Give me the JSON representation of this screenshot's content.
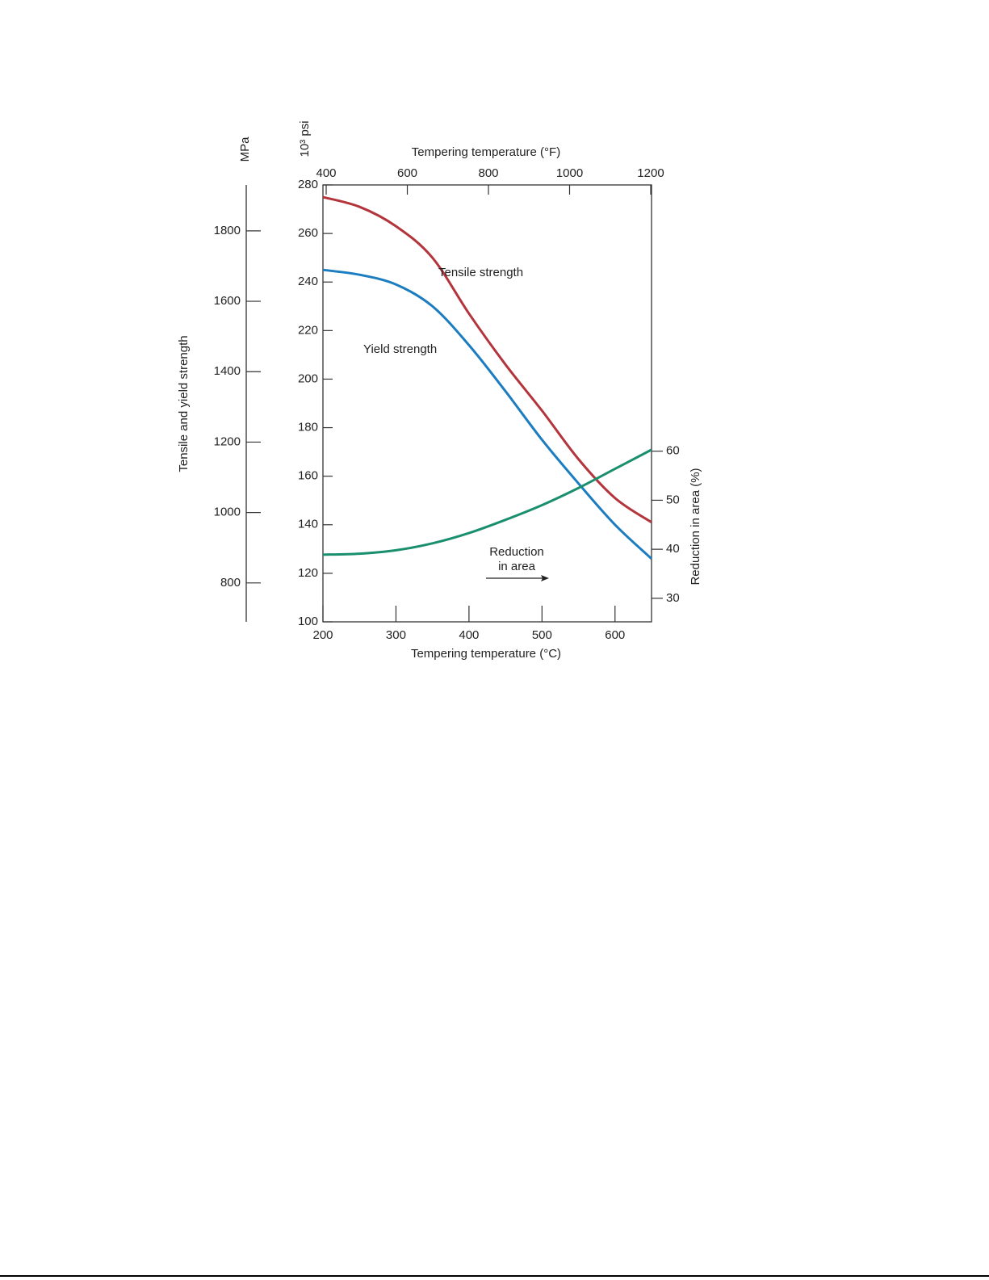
{
  "chart_data": {
    "type": "line",
    "x_label": "Tempering temperature (°C)",
    "x2_label": "Tempering temperature (°F)",
    "y_label": "Tensile and yield strength",
    "y_unit": "10³ psi",
    "y_mpa_unit": "MPa",
    "y2_label": "Reduction in area (%)",
    "x": [
      200,
      250,
      300,
      350,
      400,
      450,
      500,
      550,
      600,
      650
    ],
    "xlim": [
      200,
      650
    ],
    "xticks": [
      200,
      300,
      400,
      500,
      600
    ],
    "x2lim": [
      392,
      1202
    ],
    "x2ticks": [
      400,
      600,
      800,
      1000,
      1200
    ],
    "ylim": [
      100,
      280
    ],
    "yticks": [
      100,
      120,
      140,
      160,
      180,
      200,
      220,
      240,
      260,
      280
    ],
    "y_mpa_lim": [
      689.5,
      1930.5
    ],
    "y_mpa_ticks": [
      800,
      1000,
      1200,
      1400,
      1600,
      1800
    ],
    "y2lim": [
      25.2,
      114.3
    ],
    "y2ticks": [
      30,
      40,
      50,
      60
    ],
    "series": [
      {
        "name": "Tensile strength",
        "color": "#b3343b",
        "values": [
          275,
          271,
          263,
          250,
          227,
          206,
          187,
          167,
          151,
          141
        ]
      },
      {
        "name": "Yield strength",
        "color": "#1b7dc0",
        "values": [
          245,
          243,
          239,
          230,
          214,
          195,
          175,
          157,
          140,
          126
        ]
      },
      {
        "name": "Reduction in area",
        "color": "#1a8f6e",
        "axis": "y2",
        "values": [
          38.9,
          39.1,
          39.8,
          41.2,
          43.3,
          46,
          49,
          52.5,
          56.4,
          60.3
        ]
      }
    ],
    "annotations": [
      "Reduction",
      "in area"
    ]
  }
}
